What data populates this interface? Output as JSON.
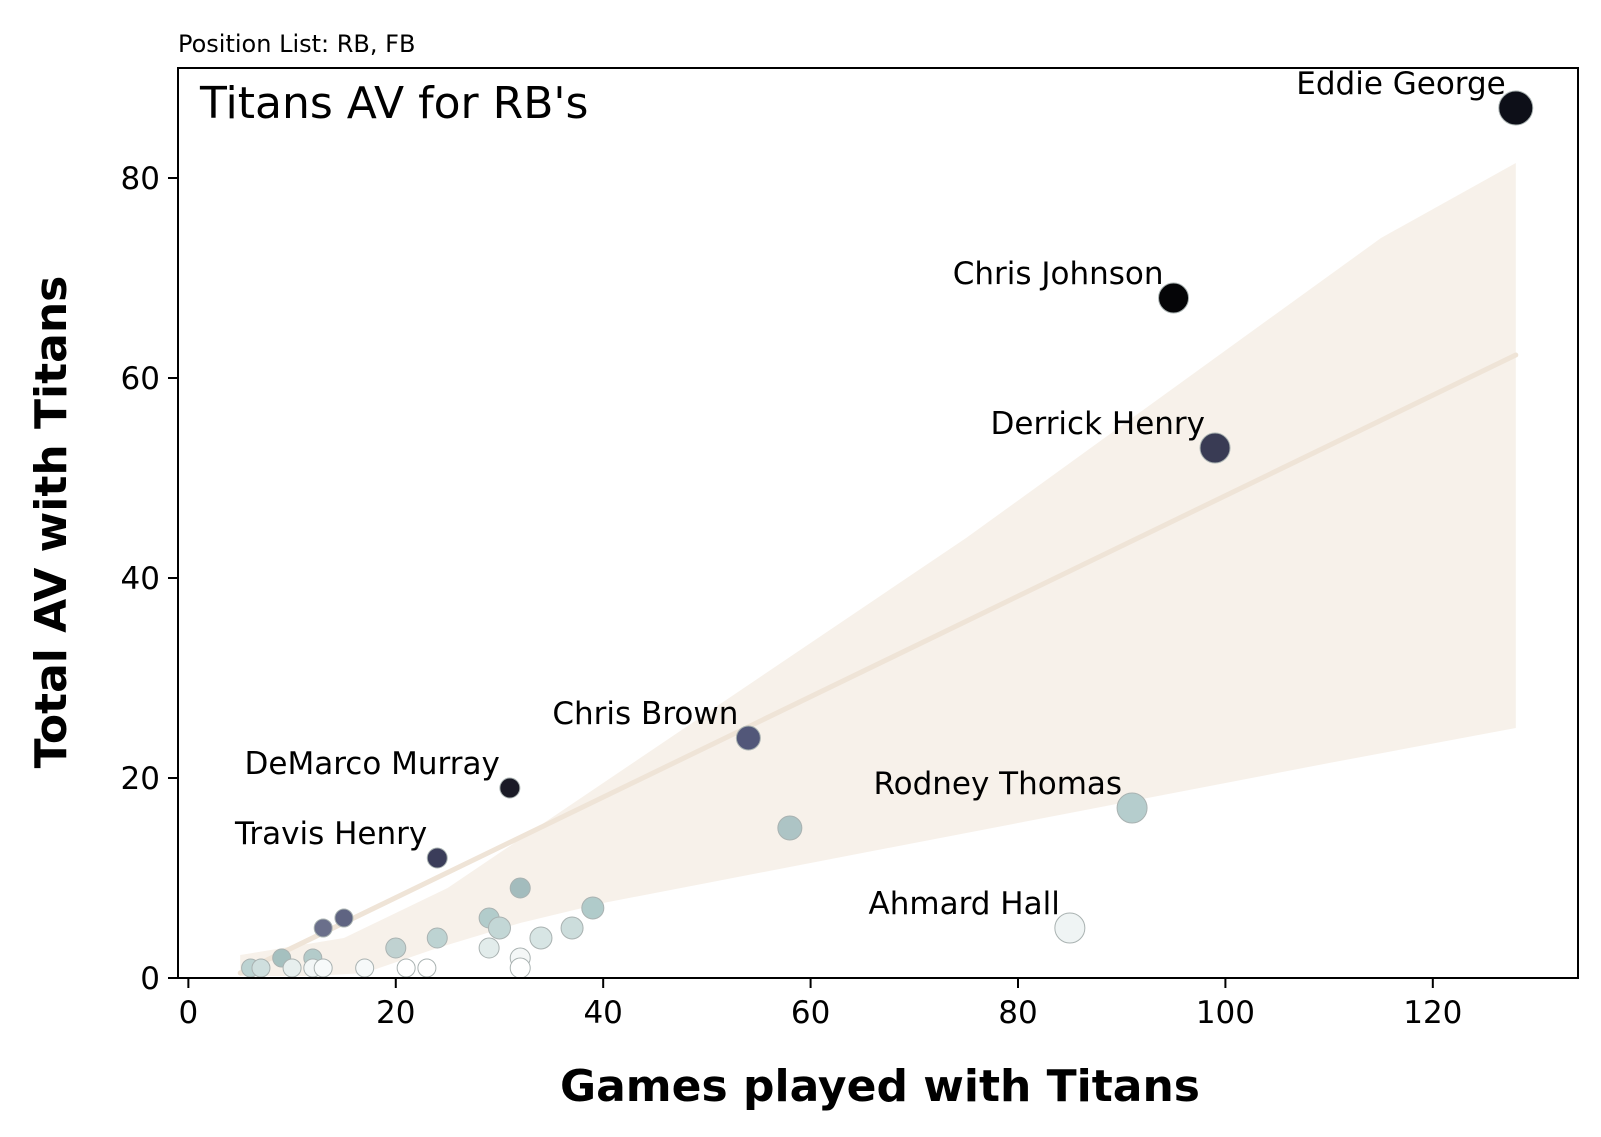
{
  "chart_data": {
    "type": "scatter",
    "subtitle": "Position List: RB, FB",
    "title": "Titans AV for RB's",
    "xlabel": "Games played with Titans",
    "ylabel": "Total AV with Titans",
    "xlim": [
      -1,
      134
    ],
    "ylim": [
      0,
      91
    ],
    "xticks": [
      0,
      20,
      40,
      60,
      80,
      100,
      120
    ],
    "yticks": [
      0,
      20,
      40,
      60,
      80
    ],
    "grid": false,
    "colors": {
      "band": "#f7f1ea",
      "trend": "#efe4d7",
      "axis": "#000000",
      "point_edge": "#a9b2b1",
      "point_low": "#ffffff",
      "point_mid": "#b5cdcd",
      "point_high": "#54587a",
      "point_top": "#0a0a10"
    },
    "trend": {
      "x": [
        5,
        128
      ],
      "y": [
        0.5,
        62.3
      ],
      "band_upper": [
        [
          5,
          2.3
        ],
        [
          15,
          4.0
        ],
        [
          25,
          9.0
        ],
        [
          35,
          16.0
        ],
        [
          45,
          23.0
        ],
        [
          55,
          30.0
        ],
        [
          65,
          37.0
        ],
        [
          75,
          44.0
        ],
        [
          85,
          51.5
        ],
        [
          95,
          59.0
        ],
        [
          105,
          66.5
        ],
        [
          115,
          74.0
        ],
        [
          128,
          81.5
        ]
      ],
      "band_lower": [
        [
          128,
          25.0
        ],
        [
          110,
          21.5
        ],
        [
          90,
          17.5
        ],
        [
          70,
          13.5
        ],
        [
          50,
          9.5
        ],
        [
          40,
          7.5
        ],
        [
          32,
          5.5
        ],
        [
          24,
          3.0
        ],
        [
          17,
          0.5
        ],
        [
          12,
          0.2
        ],
        [
          5,
          0.2
        ]
      ]
    },
    "points": [
      {
        "x": 128,
        "y": 87,
        "label": "Eddie George",
        "color": "#0d0f18",
        "size": 17
      },
      {
        "x": 95,
        "y": 68,
        "label": "Chris Johnson",
        "color": "#050507",
        "size": 15
      },
      {
        "x": 99,
        "y": 53,
        "label": "Derrick Henry",
        "color": "#393b54",
        "size": 15
      },
      {
        "x": 54,
        "y": 24,
        "label": "Chris Brown",
        "color": "#525779",
        "size": 12
      },
      {
        "x": 31,
        "y": 19,
        "label": "DeMarco Murray",
        "color": "#1a1a26",
        "size": 10
      },
      {
        "x": 24,
        "y": 12,
        "label": "Travis Henry",
        "color": "#3b3d5a",
        "size": 10
      },
      {
        "x": 91,
        "y": 17,
        "label": "Rodney Thomas",
        "color": "#b5cdcd",
        "size": 15
      },
      {
        "x": 85,
        "y": 5,
        "label": "Ahmard Hall",
        "color": "#eff4f4",
        "size": 15
      },
      {
        "x": 58,
        "y": 15,
        "label": "",
        "color": "#adc4c5",
        "size": 12
      },
      {
        "x": 32,
        "y": 9,
        "label": "",
        "color": "#a3bcbd",
        "size": 10
      },
      {
        "x": 39,
        "y": 7,
        "label": "",
        "color": "#b0cbca",
        "size": 11
      },
      {
        "x": 29,
        "y": 6,
        "label": "",
        "color": "#b2cccb",
        "size": 10
      },
      {
        "x": 30,
        "y": 5,
        "label": "",
        "color": "#c3d7d6",
        "size": 11
      },
      {
        "x": 37,
        "y": 5,
        "label": "",
        "color": "#ccdddc",
        "size": 11
      },
      {
        "x": 34,
        "y": 4,
        "label": "",
        "color": "#d7e5e4",
        "size": 11
      },
      {
        "x": 24,
        "y": 4,
        "label": "",
        "color": "#bdd3d2",
        "size": 10
      },
      {
        "x": 20,
        "y": 3,
        "label": "",
        "color": "#c0d2d1",
        "size": 10
      },
      {
        "x": 29,
        "y": 3,
        "label": "",
        "color": "#e2eceb",
        "size": 10
      },
      {
        "x": 32,
        "y": 2,
        "label": "",
        "color": "#f4f7f7",
        "size": 10
      },
      {
        "x": 32,
        "y": 1,
        "label": "",
        "color": "#ffffff",
        "size": 10
      },
      {
        "x": 15,
        "y": 6,
        "label": "",
        "color": "#5f6482",
        "size": 9
      },
      {
        "x": 13,
        "y": 5,
        "label": "",
        "color": "#6a6f8b",
        "size": 9
      },
      {
        "x": 9,
        "y": 2,
        "label": "",
        "color": "#a5c0bf",
        "size": 9
      },
      {
        "x": 12,
        "y": 2,
        "label": "",
        "color": "#b3cbca",
        "size": 9
      },
      {
        "x": 6,
        "y": 1,
        "label": "",
        "color": "#bcd3d2",
        "size": 9
      },
      {
        "x": 7,
        "y": 1,
        "label": "",
        "color": "#cfdfde",
        "size": 9
      },
      {
        "x": 10,
        "y": 1,
        "label": "",
        "color": "#e7efee",
        "size": 9
      },
      {
        "x": 12,
        "y": 1,
        "label": "",
        "color": "#f2f6f6",
        "size": 9
      },
      {
        "x": 13,
        "y": 1,
        "label": "",
        "color": "#f7fafa",
        "size": 9
      },
      {
        "x": 17,
        "y": 1,
        "label": "",
        "color": "#f6f9f9",
        "size": 9
      },
      {
        "x": 21,
        "y": 1,
        "label": "",
        "color": "#ffffff",
        "size": 9
      },
      {
        "x": 23,
        "y": 1,
        "label": "",
        "color": "#ffffff",
        "size": 9
      }
    ]
  }
}
